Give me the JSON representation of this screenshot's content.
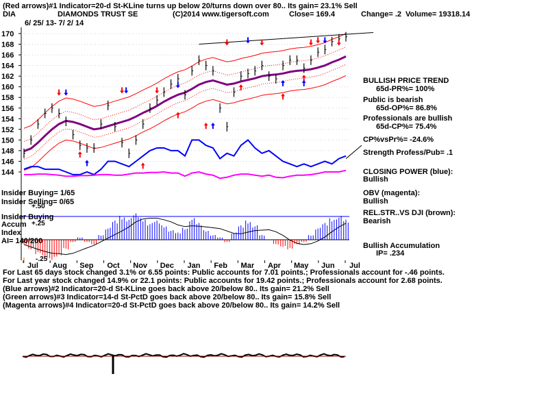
{
  "header": {
    "line1": "(Red arrows)#1 Indicator=20-d St-KLine turns up below 20/turns down over 80.. Its gain= 23.1% Sell",
    "ticker": "DIA",
    "name": "DIAMONDS TRUST SE",
    "copyright": "(C)2014 www.tigersoft.com",
    "close": "Close=  169.4",
    "change": "Change= .2",
    "volume": "Volume= 19318.14",
    "date_range": "6/ 25/ 13- 7/ 2/ 14"
  },
  "chart_data": {
    "type": "line",
    "title": "DIAMONDS TRUST SE",
    "xlabel": "",
    "ylabel": "",
    "x_ticks": [
      "Jul",
      "Aug",
      "Sep",
      "Oct",
      "Nov",
      "Dec",
      "Jan",
      "Feb",
      "Mar",
      "Apr",
      "May",
      "Jun",
      "Jul"
    ],
    "y_ticks": [
      170,
      168,
      166,
      164,
      162,
      160,
      158,
      156,
      154,
      152,
      150,
      148,
      146,
      144
    ],
    "ylim": [
      143,
      171
    ],
    "grid": true,
    "series": [
      {
        "name": "",
        "color": "#000000",
        "values": [
          147.5,
          150,
          153,
          155,
          156,
          155,
          153.5,
          151,
          149,
          148.5,
          148.5,
          153,
          156.5,
          152.5,
          149.5,
          147.5,
          150,
          153,
          156,
          157.5,
          159,
          160.5,
          161.5,
          158.5,
          163,
          165,
          164,
          163,
          156,
          152.5,
          159,
          162,
          162.5,
          163,
          164,
          162,
          161.5,
          164,
          165,
          165,
          163.5,
          165,
          166.5,
          167,
          168.5,
          169,
          169.4
        ]
      },
      {
        "name": "Closing Power",
        "color": "#0000ff",
        "values": [
          144.5,
          145,
          145,
          144.5,
          144.5,
          144.5,
          144,
          143.5,
          143.5,
          144,
          143.5,
          144.5,
          146,
          146,
          145.5,
          145,
          146,
          147,
          148,
          148.5,
          148.5,
          148,
          148,
          147,
          150,
          150,
          149,
          148.5,
          146.5,
          147.5,
          147,
          149,
          150,
          148.5,
          147.5,
          148,
          147,
          146,
          145.5,
          145,
          145.5,
          145,
          145.5,
          146,
          145.5,
          146.5,
          147
        ]
      },
      {
        "name": "OBV",
        "color": "#ff00ff",
        "values": [
          143.5,
          143.5,
          143.6,
          143.6,
          143.5,
          143.4,
          143.2,
          143.2,
          143.3,
          143.3,
          143.4,
          143.5,
          143.5,
          143.4,
          143.4,
          143.6,
          143.8,
          143.8,
          143.9,
          143.9,
          144,
          143.8,
          143.8,
          143.2,
          143.8,
          144,
          143.6,
          143.4,
          142.8,
          143,
          143.4,
          143.6,
          143.6,
          143.4,
          143.2,
          143.4,
          143,
          142.9,
          143.2,
          143.4,
          143.4,
          143.5,
          143.7,
          144,
          144,
          144,
          144.3
        ]
      },
      {
        "name": "",
        "color": "#800080",
        "values": [
          147.9,
          148.4,
          149.5,
          150.8,
          152,
          153,
          153.6,
          153.4,
          153,
          152.5,
          152,
          152.2,
          152.6,
          153,
          153.4,
          153.8,
          154.4,
          155.1,
          155.7,
          156.4,
          157.2,
          157.9,
          158.5,
          158.9,
          159.6,
          160.4,
          160.9,
          161.2,
          160.8,
          160.4,
          160.6,
          161,
          161.3,
          161.6,
          162,
          162.2,
          162.3,
          162.5,
          162.8,
          163,
          163.1,
          163.3,
          163.6,
          164,
          164.6,
          165.1,
          165.7
        ]
      }
    ],
    "indicator_ylabel": "Accum",
    "indicator_ticks": [
      "+.50",
      "+.25",
      "-.25"
    ],
    "rising_trend": {
      "from_value": 168,
      "to_value": 170.2
    }
  },
  "annotations": {
    "bullish_price_trend": "BULLISH PRICE TREND",
    "pr": "65d-PR%= 100%",
    "public_bearish": "Public is bearish",
    "op": "65d-OP%= 86.8%",
    "pros_bullish": "Professionals are bullish",
    "cp": "65d-CP%= 75.4%",
    "cpvspr": "CP%vsPr%= -24.6%",
    "strength": "Strength Profess/Pub= .1",
    "closing_power": "CLOSING POWER (blue):",
    "closing_power_val": "Bullish",
    "obv": "OBV (magenta):",
    "obv_val": "Bullish",
    "relstr": "REL.STR..VS DJI (brown):",
    "relstr_val": "Bearish",
    "bull_accum": "Bullish Accumulation",
    "ip": "IP=  .234",
    "insider_buying_count": "Insider Buying= 1/65",
    "insider_selling_count": "Insider Selling= 0/65",
    "insider_buying": "Insider Buying",
    "accum": "Accum",
    "index": "Index",
    "ai": "AI= 140/200",
    "plus50": "+.50",
    "plus25": "+.25",
    "minus25": "-.25"
  },
  "footer": {
    "line1": "For Last 65 days stock changed  3.1% or  6.55 points:  Public accounts for  7.01 points.;  Professionals account for -.46 points.",
    "line2": "For Last year stock changed  14.9% or  22.1 points:  Public accounts for  19.42 points.;  Professionals account for  2.68 points.",
    "line3": "(Blue arrows)#2 Indicator=20-d St-KLine goes back above 20/below 80..  Its gain= 21.2% Sell",
    "line4": "(Green arrows)#3 Indicator=14-d St-PctD goes back above 20/below 80..  Its gain= 15.8% Sell",
    "line5": "(Magenta arrows)#4 Indicator=20-d St-PctD goes back above 20/below 80.. Its gain= 14.2% Sell"
  },
  "colors": {
    "price": "#000000",
    "band": "#ff0000",
    "ma": "#800080",
    "closing_power": "#0000ff",
    "obv": "#ff00ff",
    "accum_pos": "#0000ff",
    "accum_neg": "#ff0000"
  }
}
